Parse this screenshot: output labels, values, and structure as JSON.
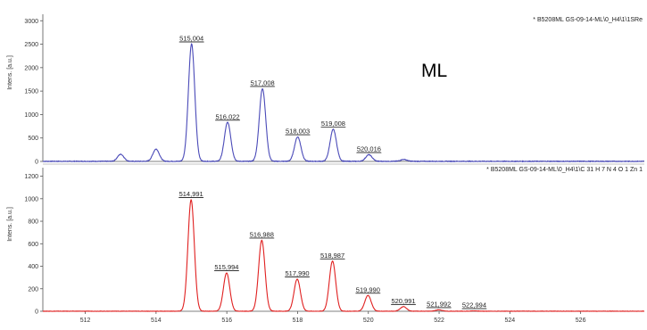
{
  "chart_data": [
    {
      "type": "line",
      "title": "",
      "caption": "* B5208ML GS-09-14-ML\\0_H4\\1\\1SRe",
      "overlay_label": "ML",
      "ylabel": "Intens. [a.u.]",
      "ylim": [
        0,
        3100
      ],
      "yticks": [
        0,
        500,
        1000,
        1500,
        2000,
        2500,
        3000
      ],
      "xlim": [
        510.8,
        527.8
      ],
      "color": "#4a4ab8",
      "peaks": [
        {
          "x": 513.0,
          "y": 150,
          "label": ""
        },
        {
          "x": 514.0,
          "y": 260,
          "label": ""
        },
        {
          "x": 515.004,
          "y": 2500,
          "label": "515,004"
        },
        {
          "x": 516.022,
          "y": 830,
          "label": "516,022"
        },
        {
          "x": 517.008,
          "y": 1550,
          "label": "517,008"
        },
        {
          "x": 518.003,
          "y": 520,
          "label": "518,003"
        },
        {
          "x": 519.008,
          "y": 680,
          "label": "519,008"
        },
        {
          "x": 520.016,
          "y": 140,
          "label": "520,016"
        },
        {
          "x": 521.0,
          "y": 40,
          "label": ""
        }
      ]
    },
    {
      "type": "line",
      "title": "",
      "caption": "* B5208ML GS-09-14-ML\\0_H4\\1\\C 31 H 7 N 4 O 1 Zn 1",
      "ylabel": "Intens. [a.u.]",
      "ylim": [
        0,
        1260
      ],
      "yticks": [
        0,
        200,
        400,
        600,
        800,
        1000,
        1200
      ],
      "xlim": [
        510.8,
        527.8
      ],
      "xticks": [
        512,
        514,
        516,
        518,
        520,
        522,
        524,
        526
      ],
      "color": "#e02020",
      "peaks": [
        {
          "x": 514.991,
          "y": 990,
          "label": "514,991"
        },
        {
          "x": 515.994,
          "y": 340,
          "label": "515,994"
        },
        {
          "x": 516.988,
          "y": 630,
          "label": "516,988"
        },
        {
          "x": 517.99,
          "y": 285,
          "label": "517,990"
        },
        {
          "x": 518.987,
          "y": 445,
          "label": "518,987"
        },
        {
          "x": 519.99,
          "y": 140,
          "label": "519,990"
        },
        {
          "x": 520.991,
          "y": 40,
          "label": "520,991"
        },
        {
          "x": 521.992,
          "y": 12,
          "label": "521,992"
        },
        {
          "x": 522.994,
          "y": 3,
          "label": "522,994"
        }
      ]
    }
  ]
}
